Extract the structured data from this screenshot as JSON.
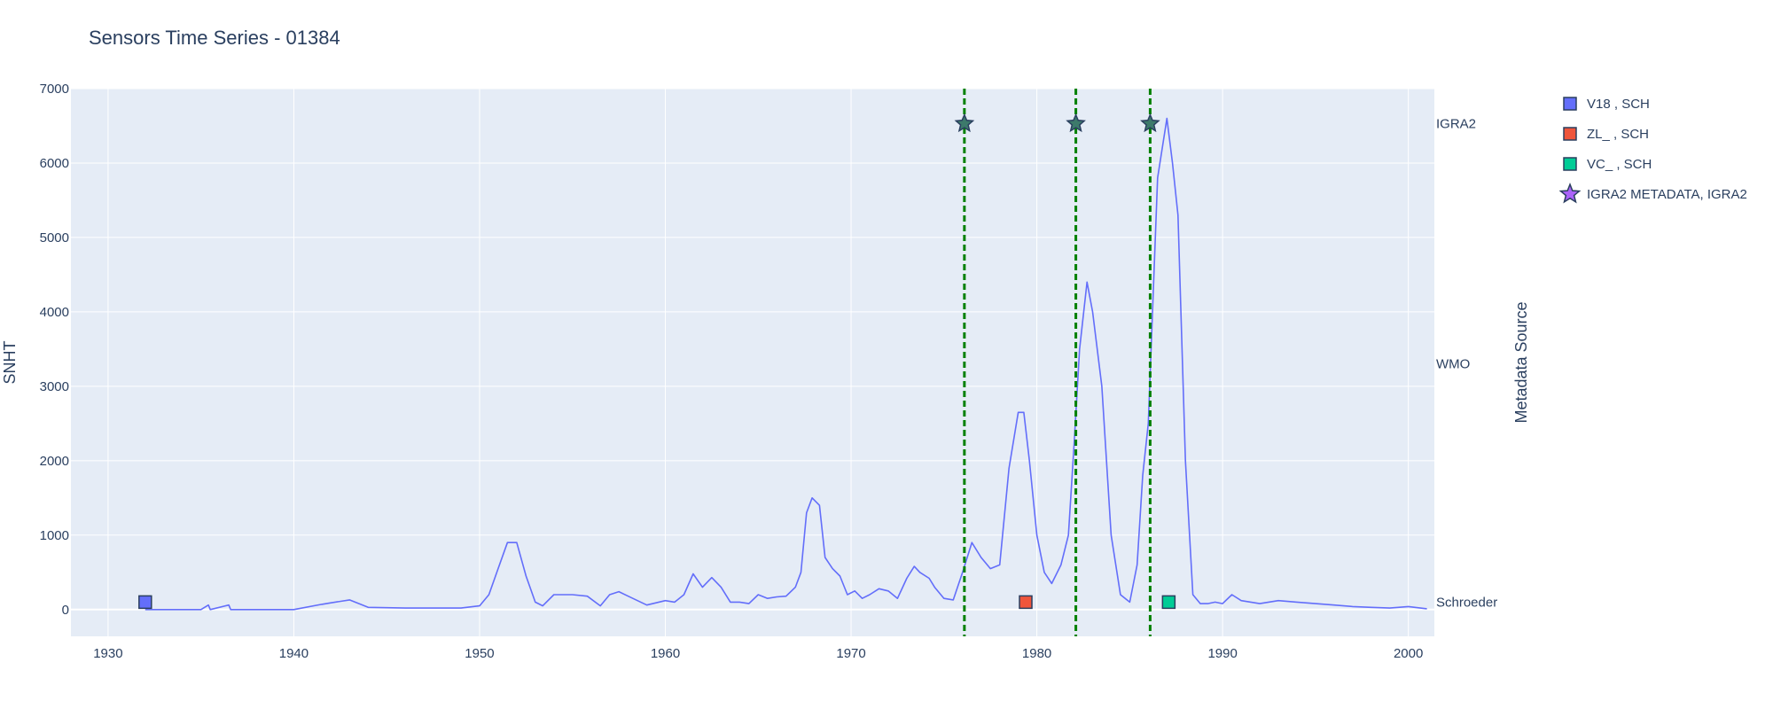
{
  "chart_data": {
    "type": "line",
    "title": "Sensors Time Series - 01384",
    "ylabel": "SNHT",
    "y2label": "Metadata Source",
    "xlim": [
      1928,
      2001.4
    ],
    "ylim": [
      -360,
      7000
    ],
    "x_ticks": [
      1930,
      1940,
      1950,
      1960,
      1970,
      1980,
      1990,
      2000
    ],
    "y_ticks": [
      0,
      1000,
      2000,
      3000,
      4000,
      5000,
      6000,
      7000
    ],
    "grid": true,
    "legend_position": "right",
    "colors": {
      "plot_bg": "#e5ecf6",
      "grid": "#ffffff",
      "line": "#636efa",
      "vline": "#008000",
      "text": "#2a3f5f"
    },
    "categories_right_axis": [
      {
        "label": "IGRA2",
        "value": 6530
      },
      {
        "label": "WMO",
        "value": 3300
      },
      {
        "label": "Schroeder",
        "value": 100
      }
    ],
    "series": [
      {
        "type": "line",
        "x": [
          1932,
          1935,
          1935.4,
          1935.5,
          1936.5,
          1936.6,
          1937,
          1938,
          1940,
          1941.5,
          1942,
          1943,
          1944,
          1946,
          1949,
          1950,
          1950.5,
          1951,
          1951.5,
          1952,
          1952.5,
          1953,
          1953.4,
          1954,
          1955,
          1955.8,
          1956.5,
          1957,
          1957.5,
          1958,
          1959,
          1960,
          1960.5,
          1961,
          1961.5,
          1962,
          1962.5,
          1963,
          1963.5,
          1964,
          1964.5,
          1965,
          1965.5,
          1966,
          1966.5,
          1967,
          1967.3,
          1967.6,
          1967.9,
          1968.3,
          1968.6,
          1969,
          1969.4,
          1969.8,
          1970.2,
          1970.6,
          1971,
          1971.5,
          1972,
          1972.5,
          1973,
          1973.4,
          1973.7,
          1974.2,
          1974.5,
          1975,
          1975.5,
          1976,
          1976.5,
          1977,
          1977.5,
          1978,
          1978.5,
          1979,
          1979.3,
          1979.6,
          1980,
          1980.4,
          1980.8,
          1981.3,
          1981.7,
          1982,
          1982.3,
          1982.7,
          1983,
          1983.5,
          1984,
          1984.5,
          1985,
          1985.4,
          1985.7,
          1986,
          1986.5,
          1987,
          1987.3,
          1987.6,
          1988,
          1988.4,
          1988.8,
          1989.2,
          1989.6,
          1990,
          1990.5,
          1991,
          1992,
          1993,
          1994,
          1995,
          1996,
          1997,
          1998,
          1999,
          2000,
          2001
        ],
        "y": [
          0,
          0,
          60,
          0,
          60,
          0,
          0,
          0,
          0,
          70,
          90,
          130,
          30,
          20,
          20,
          50,
          200,
          550,
          900,
          900,
          450,
          100,
          50,
          200,
          200,
          180,
          50,
          200,
          240,
          180,
          60,
          120,
          100,
          200,
          480,
          300,
          430,
          300,
          100,
          100,
          80,
          200,
          150,
          170,
          180,
          300,
          500,
          1300,
          1500,
          1400,
          700,
          550,
          450,
          200,
          250,
          150,
          200,
          280,
          250,
          150,
          420,
          580,
          500,
          420,
          300,
          150,
          130,
          500,
          900,
          700,
          550,
          600,
          1900,
          2650,
          2650,
          2000,
          1000,
          500,
          350,
          600,
          1000,
          2200,
          3500,
          4400,
          4000,
          3000,
          1000,
          200,
          100,
          600,
          1800,
          2500,
          5800,
          6600,
          6000,
          5300,
          2000,
          200,
          80,
          80,
          100,
          80,
          200,
          120,
          80,
          120,
          100,
          80,
          60,
          40,
          30,
          20,
          40,
          10
        ]
      },
      {
        "type": "scatter",
        "name": "V18 , SCH",
        "color": "#636efa",
        "marker": "square",
        "x": [
          1932
        ],
        "y": [
          100
        ]
      },
      {
        "type": "scatter",
        "name": "ZL_ , SCH",
        "color": "#ef553b",
        "marker": "square",
        "x": [
          1979.4
        ],
        "y": [
          100
        ]
      },
      {
        "type": "scatter",
        "name": "VC_ , SCH",
        "color": "#00cc96",
        "marker": "square",
        "x": [
          1987.1
        ],
        "y": [
          100
        ]
      },
      {
        "type": "scatter",
        "name": "IGRA2 METADATA, IGRA2",
        "color": "#636efa",
        "legend_color": "#ab63fa",
        "marker": "star",
        "x": [
          1976.1,
          1982.1,
          1986.1
        ],
        "y": [
          6530,
          6530,
          6530
        ]
      }
    ],
    "vlines": [
      1976.1,
      1982.1,
      1986.1
    ]
  }
}
